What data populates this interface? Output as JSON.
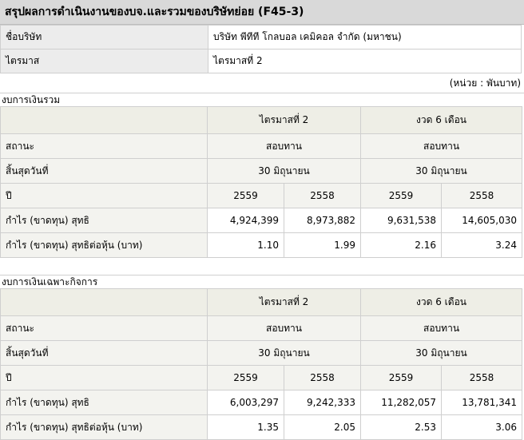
{
  "title": "สรุปผลการดำเนินงานของบจ.และรวมของบริษัทย่อย (F45-3)",
  "info": {
    "company_label": "ชื่อบริษัท",
    "company_value": "บริษัท พีทีที โกลบอล เคมิคอล จำกัด (มหาชน)",
    "quarter_label": "ไตรมาส",
    "quarter_value": "ไตรมาสที่ 2"
  },
  "unit_note": "(หน่วย : พันบาท)",
  "sections": [
    {
      "title": "งบการเงินรวม",
      "header_quarter": "ไตรมาสที่ 2",
      "header_period": "งวด 6 เดือน",
      "status_label": "สถานะ",
      "status_q": "สอบทาน",
      "status_p": "สอบทาน",
      "end_label": "สิ้นสุดวันที่",
      "end_q": "30 มิถุนายน",
      "end_p": "30 มิถุนายน",
      "year_label": "ปี",
      "years": [
        "2559",
        "2558",
        "2559",
        "2558"
      ],
      "profit_label": "กำไร (ขาดทุน) สุทธิ",
      "profit": [
        "4,924,399",
        "8,973,882",
        "9,631,538",
        "14,605,030"
      ],
      "eps_label": "กำไร (ขาดทุน) สุทธิต่อหุ้น (บาท)",
      "eps": [
        "1.10",
        "1.99",
        "2.16",
        "3.24"
      ]
    },
    {
      "title": "งบการเงินเฉพาะกิจการ",
      "header_quarter": "ไตรมาสที่ 2",
      "header_period": "งวด 6 เดือน",
      "status_label": "สถานะ",
      "status_q": "สอบทาน",
      "status_p": "สอบทาน",
      "end_label": "สิ้นสุดวันที่",
      "end_q": "30 มิถุนายน",
      "end_p": "30 มิถุนายน",
      "year_label": "ปี",
      "years": [
        "2559",
        "2558",
        "2559",
        "2558"
      ],
      "profit_label": "กำไร (ขาดทุน) สุทธิ",
      "profit": [
        "6,003,297",
        "9,242,333",
        "11,282,057",
        "13,781,341"
      ],
      "eps_label": "กำไร (ขาดทุน) สุทธิต่อหุ้น (บาท)",
      "eps": [
        "1.35",
        "2.05",
        "2.53",
        "3.06"
      ]
    }
  ]
}
